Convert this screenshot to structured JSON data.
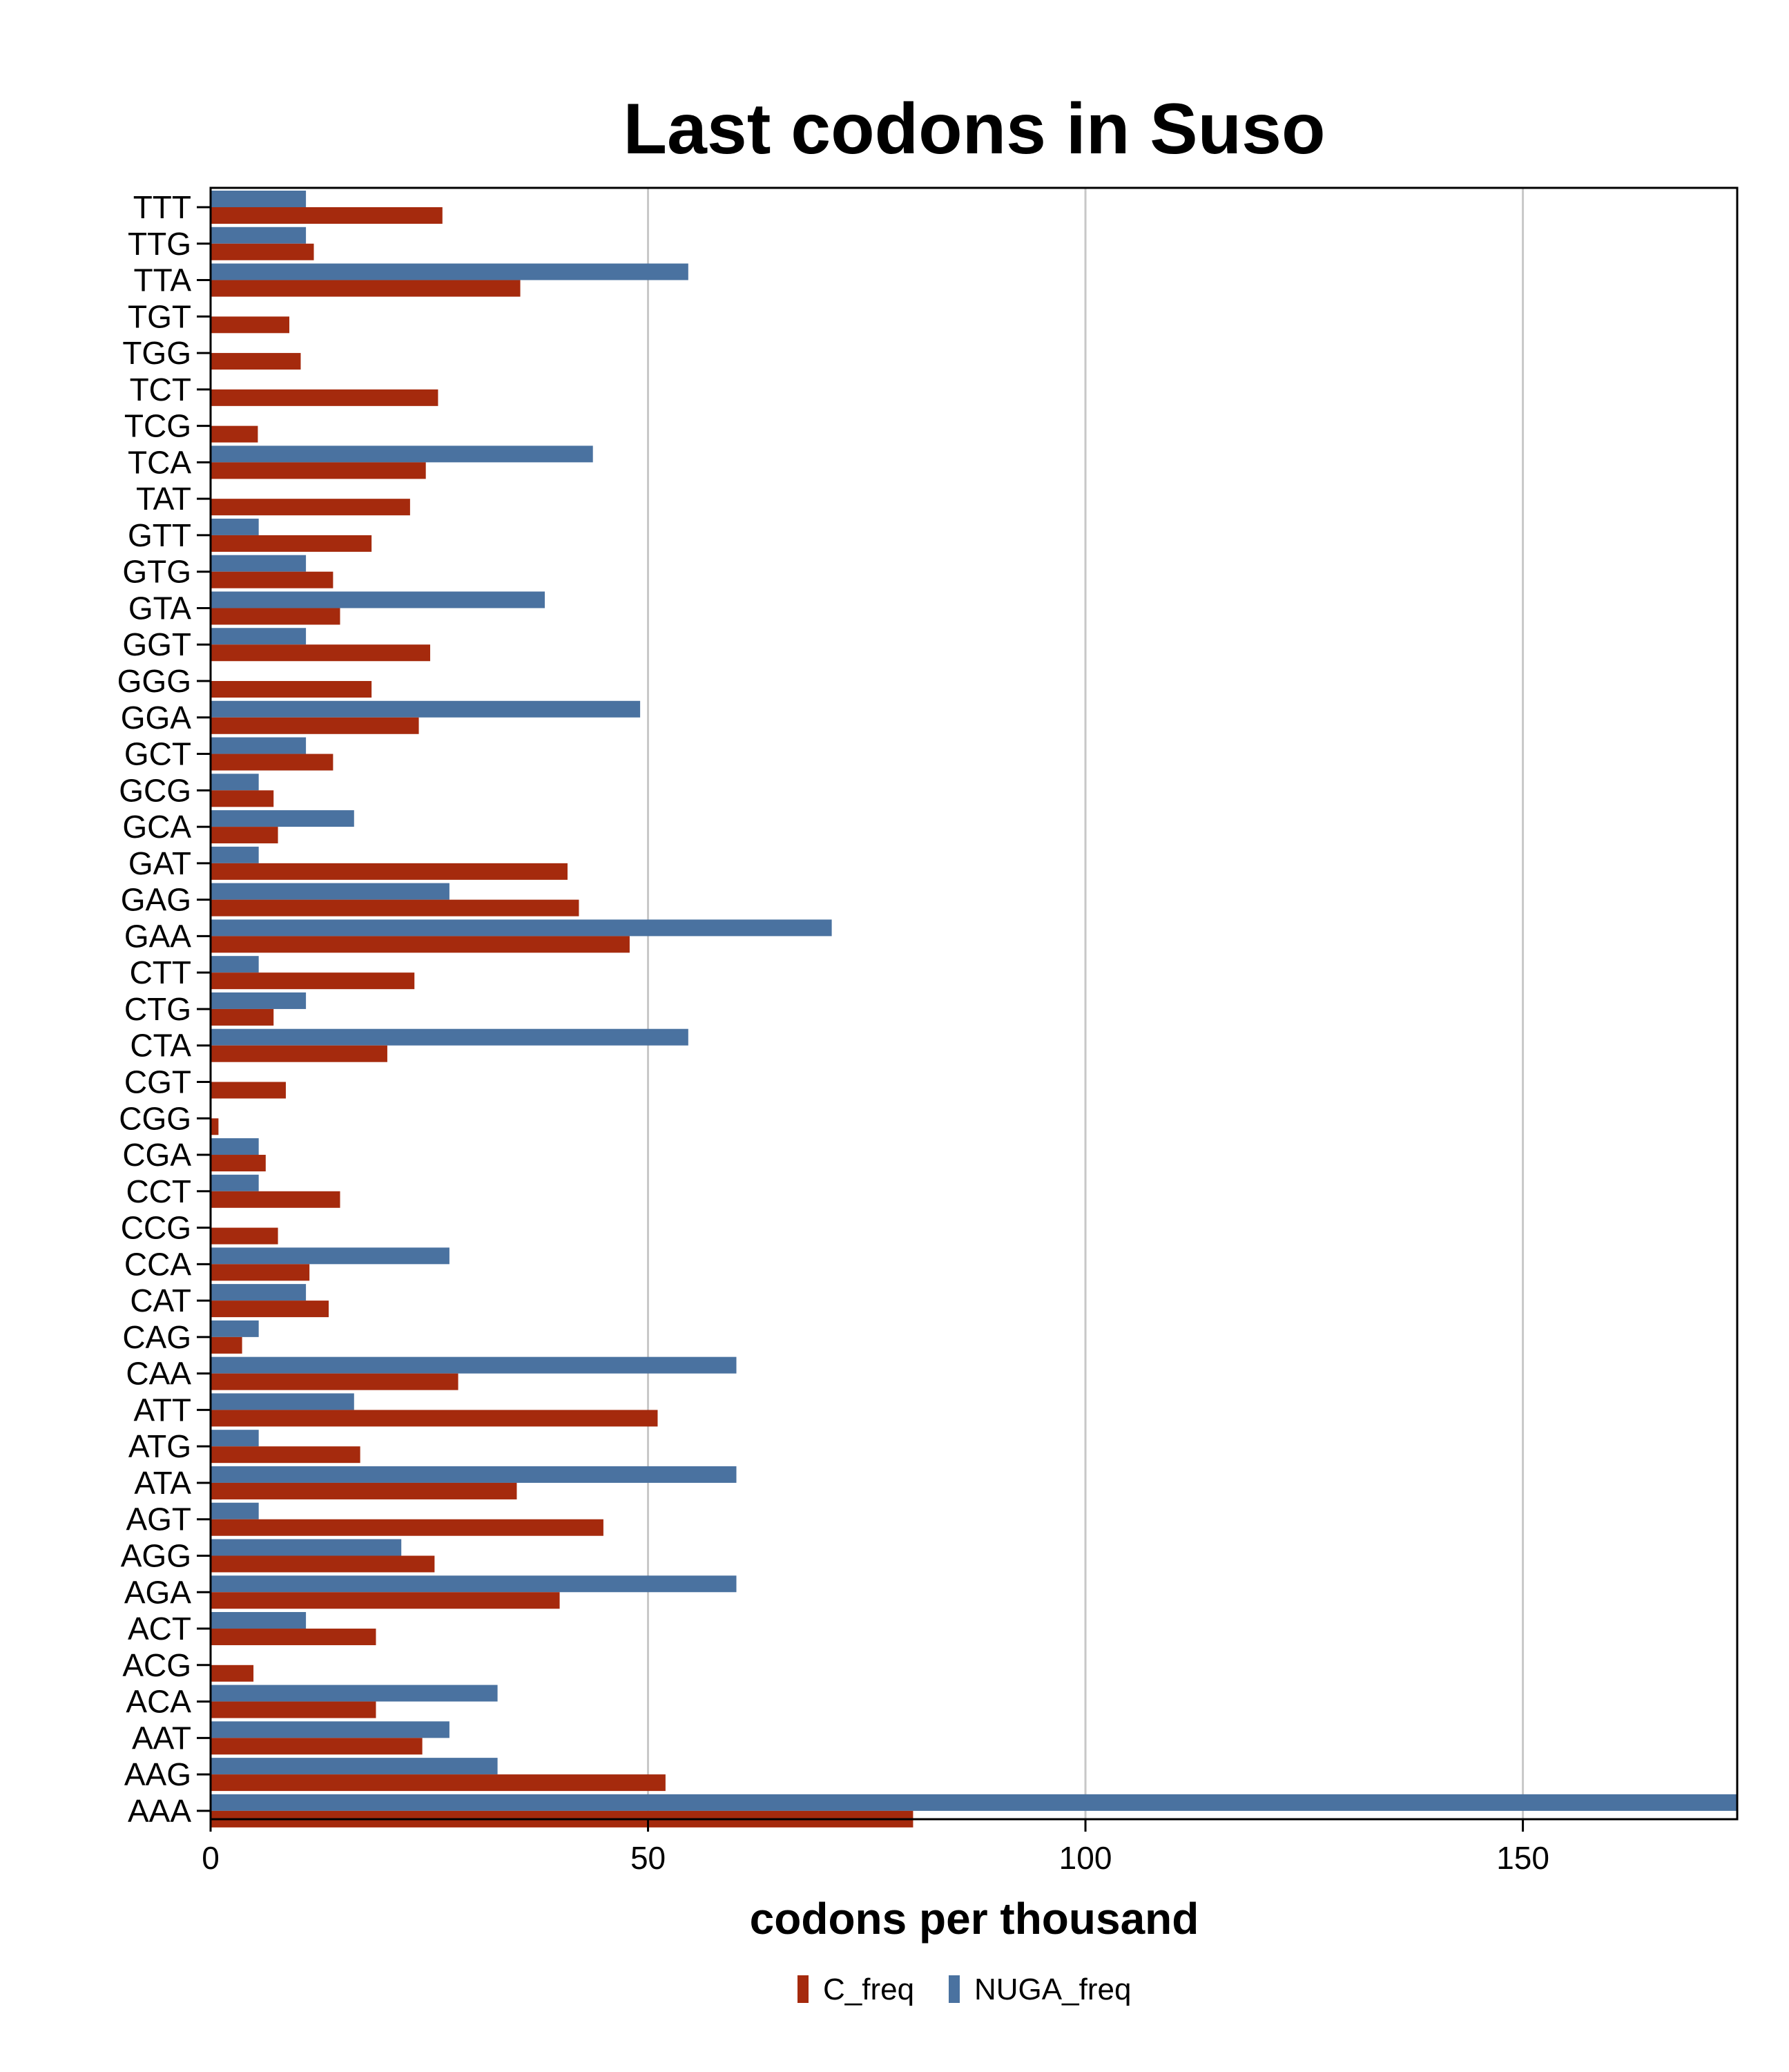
{
  "chart_data": {
    "type": "bar",
    "orientation": "horizontal",
    "title": "Last codons in Suso",
    "xlabel": "codons per thousand",
    "ylabel": "",
    "xlim": [
      0,
      174.5
    ],
    "xticks": [
      0,
      50,
      100,
      150
    ],
    "grid": "vertical",
    "legend_position": "bottom",
    "categories": [
      "TTT",
      "TTG",
      "TTA",
      "TGT",
      "TGG",
      "TCT",
      "TCG",
      "TCA",
      "TAT",
      "GTT",
      "GTG",
      "GTA",
      "GGT",
      "GGG",
      "GGA",
      "GCT",
      "GCG",
      "GCA",
      "GAT",
      "GAG",
      "GAA",
      "CTT",
      "CTG",
      "CTA",
      "CGT",
      "CGG",
      "CGA",
      "CCT",
      "CCG",
      "CCA",
      "CAT",
      "CAG",
      "CAA",
      "ATT",
      "ATG",
      "ATA",
      "AGT",
      "AGG",
      "AGA",
      "ACT",
      "ACG",
      "ACA",
      "AAT",
      "AAG",
      "AAA"
    ],
    "series": [
      {
        "name": "C_freq",
        "color": "#A52A0D",
        "values": [
          26.5,
          11.8,
          35.4,
          9.0,
          10.3,
          26.0,
          5.4,
          24.6,
          22.8,
          18.4,
          14.0,
          14.8,
          25.1,
          18.4,
          23.8,
          14.0,
          7.2,
          7.7,
          40.8,
          42.1,
          47.9,
          23.3,
          7.2,
          20.2,
          8.6,
          0.9,
          6.3,
          14.8,
          7.7,
          11.3,
          13.5,
          3.6,
          28.3,
          51.1,
          17.1,
          35.0,
          44.9,
          25.6,
          39.9,
          18.9,
          4.9,
          18.9,
          24.2,
          52.0,
          80.3
        ]
      },
      {
        "name": "NUGA_freq",
        "color": "#4A72A0",
        "values": [
          10.9,
          10.9,
          54.6,
          0,
          0,
          0,
          0,
          43.7,
          0,
          5.5,
          10.9,
          38.2,
          10.9,
          0,
          49.1,
          10.9,
          5.5,
          16.4,
          5.5,
          27.3,
          71.0,
          5.5,
          10.9,
          54.6,
          0,
          0,
          5.5,
          5.5,
          0,
          27.3,
          10.9,
          5.5,
          60.1,
          16.4,
          5.5,
          60.1,
          5.5,
          21.8,
          60.1,
          10.9,
          0,
          32.8,
          27.3,
          32.8,
          174.5
        ]
      }
    ]
  }
}
